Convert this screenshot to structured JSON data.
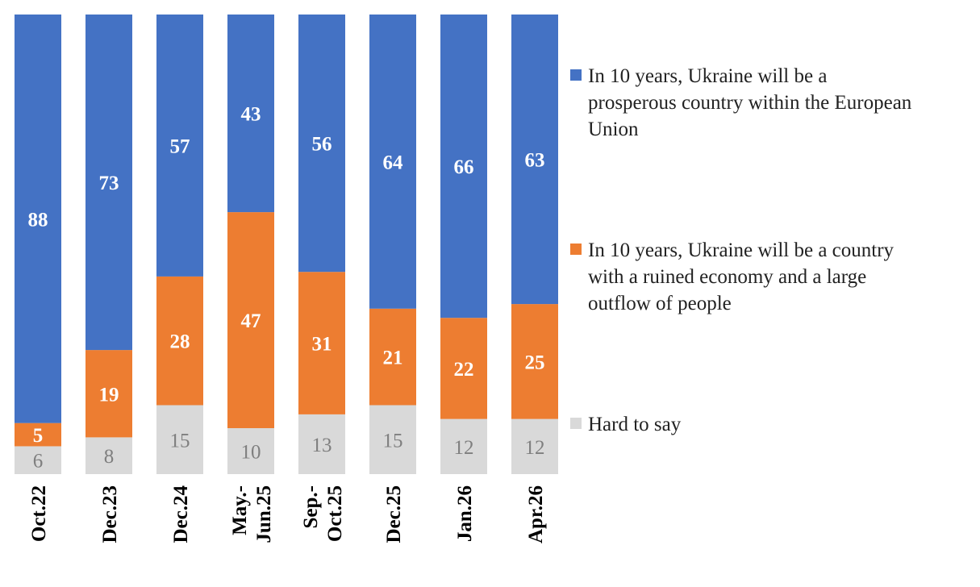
{
  "chart_data": {
    "type": "bar",
    "stacked": true,
    "categories": [
      "Oct.22",
      "Dec.23",
      "Dec.24",
      "May.-Jun.25",
      "Sep.-Oct.25",
      "Dec.25",
      "Jan.26",
      "Apr.26"
    ],
    "category_lines": [
      [
        "Oct.22"
      ],
      [
        "Dec.23"
      ],
      [
        "Dec.24"
      ],
      [
        "May.-",
        "Jun.25"
      ],
      [
        "Sep.-",
        "Oct.25"
      ],
      [
        "Dec.25"
      ],
      [
        "Jan.26"
      ],
      [
        "Apr.26"
      ]
    ],
    "series": [
      {
        "name": "Hard to say",
        "values": [
          6,
          8,
          15,
          10,
          13,
          15,
          12,
          12
        ],
        "color": "#d9d9d9",
        "label_color": "#7f7f7f",
        "label_bold": false
      },
      {
        "name": "In 10 years, Ukraine will be a country with a ruined economy and a large outflow of people",
        "values": [
          5,
          19,
          28,
          47,
          31,
          21,
          22,
          25
        ],
        "color": "#ed7d31",
        "label_color": "#ffffff",
        "label_bold": true
      },
      {
        "name": "In 10 years, Ukraine will be a prosperous country within the European Union",
        "values": [
          88,
          73,
          57,
          43,
          56,
          64,
          66,
          63
        ],
        "color": "#4472c4",
        "label_color": "#ffffff",
        "label_bold": true
      }
    ],
    "ylim": [
      0,
      100
    ],
    "grid": false,
    "legend_position": "right",
    "legend": [
      {
        "lines": [
          "In 10 years, Ukraine will be a",
          "prosperous country within the European",
          "Union"
        ],
        "color": "#4472c4"
      },
      {
        "lines": [
          "In 10 years, Ukraine will be a country",
          "with a ruined economy and a large",
          "outflow of people"
        ],
        "color": "#ed7d31"
      },
      {
        "lines": [
          "Hard to say"
        ],
        "color": "#d9d9d9"
      }
    ]
  }
}
